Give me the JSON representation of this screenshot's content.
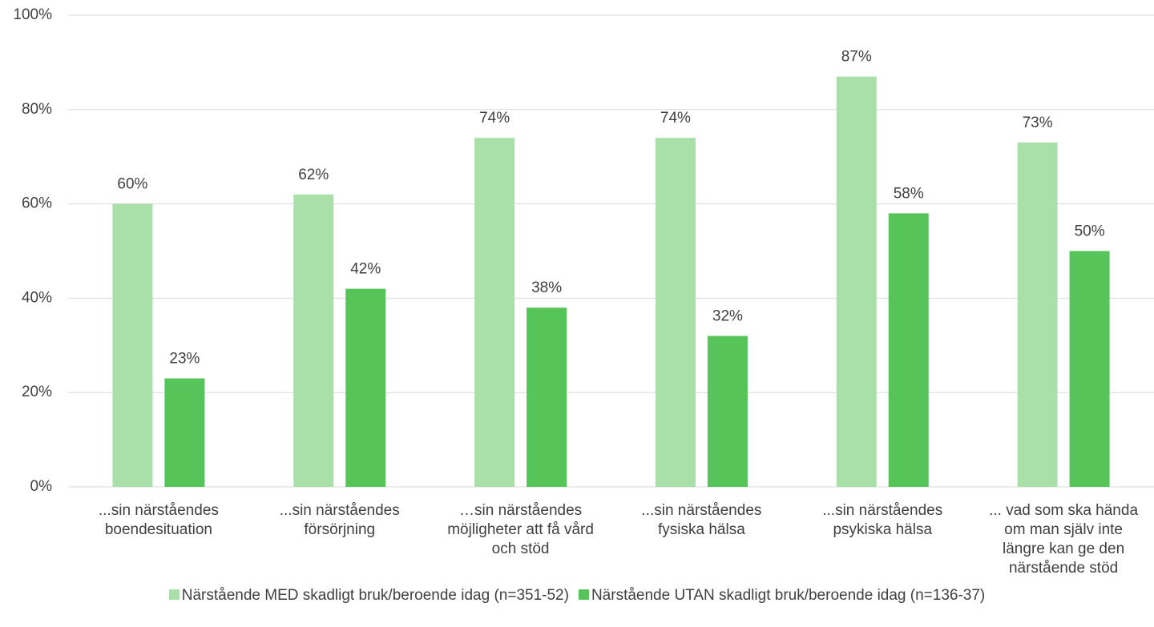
{
  "chart_data": {
    "type": "bar",
    "categories": [
      "...sin närståendes boendesituation",
      "...sin närståendes försörjning",
      "…sin närståendes möjligheter att få vård och stöd",
      "...sin närståendes fysiska hälsa",
      "...sin närståendes psykiska hälsa",
      "... vad som ska hända om man själv inte längre kan ge den närstående stöd"
    ],
    "series": [
      {
        "name": "Närstående MED skadligt bruk/beroende idag (n=351-52)",
        "color": "#a9e0a9",
        "values": [
          60,
          62,
          74,
          74,
          87,
          73
        ],
        "value_labels": [
          "60%",
          "62%",
          "74%",
          "74%",
          "87%",
          "73%"
        ]
      },
      {
        "name": "Närstående UTAN skadligt bruk/beroende idag (n=136-37)",
        "color": "#57c45a",
        "values": [
          23,
          42,
          38,
          32,
          58,
          50
        ],
        "value_labels": [
          "23%",
          "42%",
          "38%",
          "32%",
          "58%",
          "50%"
        ]
      }
    ],
    "ylim": [
      0,
      100
    ],
    "yticks": [
      {
        "value": 0,
        "label": "0%"
      },
      {
        "value": 20,
        "label": "20%"
      },
      {
        "value": 40,
        "label": "40%"
      },
      {
        "value": 60,
        "label": "60%"
      },
      {
        "value": 80,
        "label": "80%"
      },
      {
        "value": 100,
        "label": "100%"
      }
    ],
    "grid": true,
    "legend": "bottom"
  }
}
